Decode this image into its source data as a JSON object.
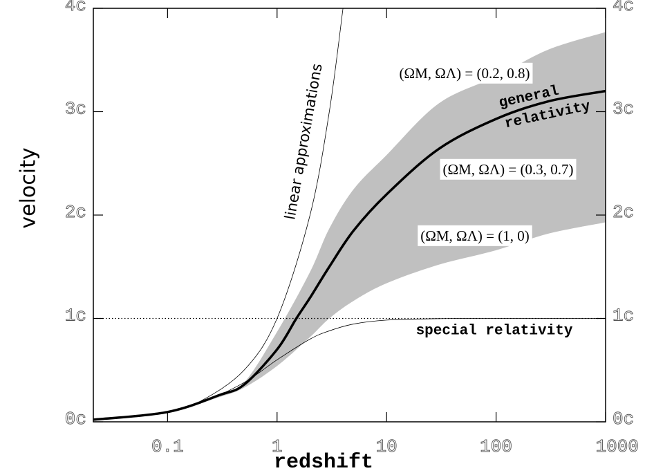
{
  "chart_data": {
    "type": "line",
    "xlabel": "redshift",
    "ylabel": "velocity",
    "xscale": "log",
    "xlim": [
      0.021,
      1000
    ],
    "ylim": [
      0,
      4
    ],
    "xticks": [
      0.1,
      1,
      10,
      100,
      1000
    ],
    "yticks": [
      {
        "value": 0,
        "label": "0c"
      },
      {
        "value": 1,
        "label": "1c"
      },
      {
        "value": 2,
        "label": "2c"
      },
      {
        "value": 3,
        "label": "3c"
      },
      {
        "value": 4,
        "label": "4c"
      }
    ],
    "hline": 1,
    "band": {
      "color": "#c0c0c0",
      "x": [
        0.021,
        0.1,
        0.3,
        0.5,
        1,
        2,
        3,
        5,
        10,
        30,
        100,
        300,
        1000
      ],
      "upper": [
        0.021,
        0.095,
        0.27,
        0.38,
        0.87,
        1.45,
        1.87,
        2.25,
        2.58,
        3.08,
        3.34,
        3.6,
        3.77
      ],
      "lower": [
        0.021,
        0.095,
        0.24,
        0.33,
        0.54,
        0.82,
        1.0,
        1.17,
        1.34,
        1.52,
        1.66,
        1.82,
        1.93
      ]
    },
    "series": [
      {
        "color": "#000000",
        "linewidth": 3.5,
        "x": [
          0.021,
          0.1,
          0.3,
          0.5,
          1,
          1.5,
          2,
          3,
          5,
          10,
          30,
          100,
          300,
          1000
        ],
        "values": [
          0.021,
          0.095,
          0.26,
          0.36,
          0.7,
          1.0,
          1.2,
          1.5,
          1.85,
          2.2,
          2.64,
          2.93,
          3.1,
          3.2
        ]
      },
      {
        "color": "#000000",
        "linewidth": 0.8,
        "x": [
          0.021,
          0.05,
          0.1,
          0.2,
          0.5,
          1,
          2,
          3,
          5,
          10,
          30,
          100,
          1000
        ],
        "values": [
          0.021,
          0.049,
          0.095,
          0.18,
          0.38,
          0.6,
          0.8,
          0.88,
          0.946,
          0.984,
          0.998,
          1,
          1
        ]
      },
      {
        "color": "#000000",
        "linewidth": 0.8,
        "x": [
          0.021,
          0.05,
          0.1,
          0.2,
          0.5,
          1,
          2,
          3,
          4
        ],
        "values": [
          0.021,
          0.05,
          0.1,
          0.2,
          0.5,
          1,
          2,
          3,
          4
        ]
      }
    ],
    "annotations": [
      "linear approximations",
      "(ΩM, ΩΛ) = (0.2, 0.8)",
      "general",
      "relativity",
      "(ΩM, ΩΛ) = (0.3, 0.7)",
      "(ΩM, ΩΛ) = (1, 0)",
      "special relativity"
    ]
  }
}
